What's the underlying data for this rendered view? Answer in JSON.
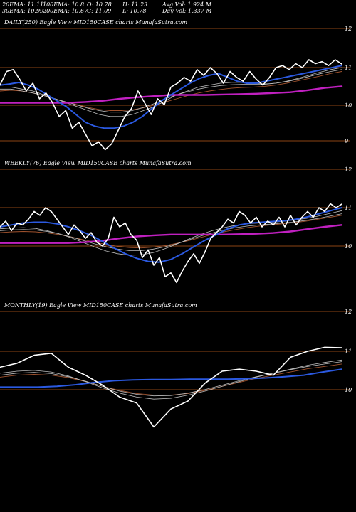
{
  "header": {
    "col1": [
      "20EMA: 11.11",
      "30EMA: 10.99"
    ],
    "col2": [
      "100EMA: 10.8",
      "200EMA: 10.67"
    ],
    "col3": [
      "O: 10.78",
      "C: 11.09"
    ],
    "col4": [
      "H: 11.23",
      "L: 10.78"
    ],
    "col5": [
      "Avg Vol: 1.924  M",
      "Day Vol: 1.337 M"
    ]
  },
  "colors": {
    "background": "#000000",
    "price": "#ffffff",
    "ema_fast": "#2b59e0",
    "ema_slow": "#c020c0",
    "ema_mid": "#bcbcbc",
    "ema_long": "#a0522d",
    "grid": "#8b4513"
  },
  "chart_data": [
    {
      "type": "line",
      "title": "DAILY(250) Eagle  View  MID150CASE charts MunafaSutra.com",
      "ylim": [
        8.6,
        12.2
      ],
      "yticks": [
        "12",
        "11",
        "10",
        "9"
      ],
      "series": [
        {
          "key": "price",
          "values": [
            10.55,
            10.9,
            10.95,
            10.7,
            10.4,
            10.6,
            10.2,
            10.35,
            10.1,
            9.75,
            9.9,
            9.45,
            9.6,
            9.3,
            9.0,
            9.1,
            8.9,
            9.05,
            9.4,
            9.75,
            9.95,
            10.4,
            10.1,
            9.8,
            10.2,
            10.05,
            10.5,
            10.6,
            10.75,
            10.65,
            10.95,
            10.8,
            11.0,
            10.85,
            10.6,
            10.9,
            10.75,
            10.65,
            10.9,
            10.7,
            10.55,
            10.75,
            11.0,
            11.05,
            10.95,
            11.1,
            11.0,
            11.2,
            11.1,
            11.15,
            11.05,
            11.2,
            11.09
          ]
        },
        {
          "key": "ema_fast",
          "values": [
            10.55,
            10.58,
            10.62,
            10.55,
            10.45,
            10.3,
            10.15,
            10.0,
            9.8,
            9.6,
            9.5,
            9.45,
            9.45,
            9.5,
            9.6,
            9.75,
            9.95,
            10.15,
            10.3,
            10.45,
            10.6,
            10.72,
            10.8,
            10.85,
            10.75,
            10.65,
            10.6,
            10.6,
            10.65,
            10.7,
            10.75,
            10.8,
            10.85,
            10.9,
            10.95,
            11.0,
            11.05
          ]
        },
        {
          "key": "ema_slow",
          "values": [
            10.1,
            10.1,
            10.1,
            10.1,
            10.1,
            10.12,
            10.15,
            10.2,
            10.24,
            10.27,
            10.3,
            10.3,
            10.3,
            10.31,
            10.32,
            10.33,
            10.35,
            10.37,
            10.42,
            10.48,
            10.52
          ]
        },
        {
          "key": "ema_mid_a",
          "values": [
            10.5,
            10.5,
            10.45,
            10.4,
            10.3,
            10.2,
            10.1,
            10.0,
            9.9,
            9.8,
            9.75,
            9.75,
            9.8,
            9.9,
            10.0,
            10.15,
            10.3,
            10.4,
            10.5,
            10.55,
            10.6,
            10.62,
            10.62,
            10.6,
            10.58,
            10.6,
            10.65,
            10.72,
            10.8,
            10.88,
            10.95,
            11.0
          ]
        },
        {
          "key": "ema_mid_b",
          "values": [
            10.45,
            10.45,
            10.4,
            10.35,
            10.28,
            10.2,
            10.12,
            10.04,
            9.96,
            9.9,
            9.86,
            9.86,
            9.9,
            9.98,
            10.08,
            10.2,
            10.3,
            10.38,
            10.45,
            10.5,
            10.54,
            10.56,
            10.57,
            10.57,
            10.57,
            10.6,
            10.64,
            10.7,
            10.77,
            10.84,
            10.9,
            10.95
          ]
        },
        {
          "key": "ema_long",
          "values": [
            10.4,
            10.42,
            10.4,
            10.35,
            10.28,
            10.2,
            10.12,
            10.05,
            9.98,
            9.93,
            9.9,
            9.9,
            9.92,
            9.97,
            10.04,
            10.12,
            10.2,
            10.28,
            10.35,
            10.4,
            10.44,
            10.47,
            10.49,
            10.5,
            10.52,
            10.55,
            10.6,
            10.66,
            10.72,
            10.78,
            10.85,
            10.9
          ]
        }
      ]
    },
    {
      "type": "line",
      "title": "WEEKLY(76) Eagle  View  MID150CASE charts MunafaSutra.com",
      "ylim": [
        8.6,
        12.2
      ],
      "yticks": [
        "12",
        "11",
        "10"
      ],
      "series": [
        {
          "key": "price",
          "values": [
            10.5,
            10.65,
            10.4,
            10.6,
            10.55,
            10.7,
            10.9,
            10.8,
            11.0,
            10.9,
            10.7,
            10.5,
            10.3,
            10.55,
            10.4,
            10.2,
            10.35,
            10.1,
            10.0,
            10.2,
            10.75,
            10.5,
            10.6,
            10.3,
            10.15,
            9.7,
            9.9,
            9.5,
            9.7,
            9.2,
            9.3,
            9.05,
            9.35,
            9.6,
            9.8,
            9.55,
            9.85,
            10.2,
            10.35,
            10.5,
            10.7,
            10.6,
            10.9,
            10.8,
            10.6,
            10.75,
            10.5,
            10.65,
            10.55,
            10.75,
            10.5,
            10.8,
            10.55,
            10.75,
            10.9,
            10.75,
            11.0,
            10.9,
            11.1,
            11.0,
            11.09
          ]
        },
        {
          "key": "ema_fast",
          "values": [
            10.5,
            10.55,
            10.6,
            10.62,
            10.62,
            10.58,
            10.5,
            10.4,
            10.28,
            10.12,
            9.95,
            9.8,
            9.68,
            9.6,
            9.58,
            9.65,
            9.8,
            9.98,
            10.15,
            10.3,
            10.45,
            10.55,
            10.6,
            10.62,
            10.64,
            10.66,
            10.7,
            10.76,
            10.84,
            10.92,
            11.0
          ]
        },
        {
          "key": "ema_slow",
          "values": [
            10.08,
            10.08,
            10.08,
            10.08,
            10.08,
            10.1,
            10.14,
            10.2,
            10.25,
            10.28,
            10.3,
            10.3,
            10.3,
            10.3,
            10.31,
            10.32,
            10.34,
            10.38,
            10.44,
            10.5,
            10.55
          ]
        },
        {
          "key": "ema_mid_a",
          "values": [
            10.45,
            10.47,
            10.48,
            10.46,
            10.4,
            10.32,
            10.22,
            10.1,
            9.98,
            9.87,
            9.8,
            9.76,
            9.77,
            9.83,
            9.93,
            10.05,
            10.18,
            10.3,
            10.4,
            10.48,
            10.54,
            10.58,
            10.6,
            10.62,
            10.64,
            10.68,
            10.72,
            10.78,
            10.85,
            10.92
          ]
        },
        {
          "key": "ema_mid_b",
          "values": [
            10.4,
            10.42,
            10.43,
            10.42,
            10.38,
            10.32,
            10.24,
            10.15,
            10.06,
            9.98,
            9.92,
            9.88,
            9.88,
            9.92,
            9.98,
            10.06,
            10.16,
            10.26,
            10.34,
            10.42,
            10.48,
            10.52,
            10.55,
            10.57,
            10.6,
            10.63,
            10.67,
            10.72,
            10.78,
            10.84
          ]
        },
        {
          "key": "ema_long",
          "values": [
            10.35,
            10.37,
            10.38,
            10.37,
            10.34,
            10.3,
            10.24,
            10.17,
            10.1,
            10.04,
            9.99,
            9.96,
            9.95,
            9.97,
            10.01,
            10.07,
            10.14,
            10.22,
            10.3,
            10.37,
            10.43,
            10.48,
            10.52,
            10.55,
            10.58,
            10.61,
            10.65,
            10.7,
            10.75,
            10.8
          ]
        }
      ]
    },
    {
      "type": "line",
      "title": "MONTHLY(19) Eagle  View  MID150CASE charts MunafaSutra.com",
      "ylim": [
        8.6,
        12.2
      ],
      "yticks": [
        "12",
        "11",
        "10"
      ],
      "series": [
        {
          "key": "price",
          "values": [
            10.6,
            10.7,
            10.9,
            10.95,
            10.6,
            10.4,
            10.15,
            9.85,
            9.7,
            9.1,
            9.55,
            9.75,
            10.2,
            10.5,
            10.55,
            10.5,
            10.4,
            10.85,
            11.0,
            11.1,
            11.09
          ]
        },
        {
          "key": "ema_fast",
          "values": [
            10.1,
            10.1,
            10.1,
            10.12,
            10.16,
            10.22,
            10.26,
            10.28,
            10.29,
            10.29,
            10.3,
            10.3,
            10.3,
            10.31,
            10.33,
            10.36,
            10.4,
            10.48,
            10.55
          ]
        },
        {
          "key": "ema_mid_a",
          "values": [
            10.45,
            10.5,
            10.52,
            10.48,
            10.38,
            10.24,
            10.08,
            9.95,
            9.85,
            9.8,
            9.82,
            9.9,
            10.0,
            10.12,
            10.24,
            10.35,
            10.45,
            10.55,
            10.65,
            10.72,
            10.78
          ]
        },
        {
          "key": "ema_mid_b",
          "values": [
            10.4,
            10.45,
            10.47,
            10.44,
            10.36,
            10.25,
            10.12,
            10.0,
            9.92,
            9.88,
            9.89,
            9.95,
            10.04,
            10.15,
            10.26,
            10.36,
            10.45,
            10.54,
            10.62,
            10.68,
            10.74
          ]
        },
        {
          "key": "ema_long",
          "values": [
            10.35,
            10.4,
            10.42,
            10.4,
            10.34,
            10.24,
            10.12,
            10.02,
            9.94,
            9.9,
            9.9,
            9.94,
            10.02,
            10.12,
            10.22,
            10.32,
            10.4,
            10.48,
            10.56,
            10.62,
            10.68
          ]
        }
      ]
    }
  ]
}
